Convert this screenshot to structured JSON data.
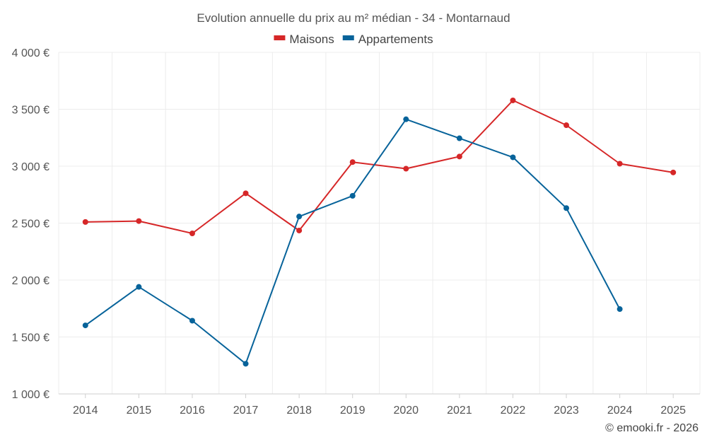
{
  "chart_data": {
    "type": "line",
    "title": "Evolution annuelle du prix au m² médian - 34 - Montarnaud",
    "xlabel": "",
    "ylabel": "",
    "categories": [
      "2014",
      "2015",
      "2016",
      "2017",
      "2018",
      "2019",
      "2020",
      "2021",
      "2022",
      "2023",
      "2024",
      "2025"
    ],
    "ylim": [
      1000,
      4000
    ],
    "yticks": [
      1000,
      1500,
      2000,
      2500,
      3000,
      3500,
      4000
    ],
    "ytick_labels": [
      "1 000 €",
      "1 500 €",
      "2 000 €",
      "2 500 €",
      "3 000 €",
      "3 500 €",
      "4 000 €"
    ],
    "grid": true,
    "legend_position": "top-center",
    "series": [
      {
        "name": "Maisons",
        "color": "#d62728",
        "values": [
          2510,
          2518,
          2410,
          2762,
          2435,
          3036,
          2978,
          3085,
          3578,
          3360,
          3022,
          2945
        ]
      },
      {
        "name": "Appartements",
        "color": "#07639a",
        "values": [
          1602,
          1940,
          1643,
          1265,
          2558,
          2740,
          3412,
          3245,
          3078,
          2632,
          1745,
          null
        ]
      }
    ],
    "credit": "© emooki.fr - 2026"
  }
}
